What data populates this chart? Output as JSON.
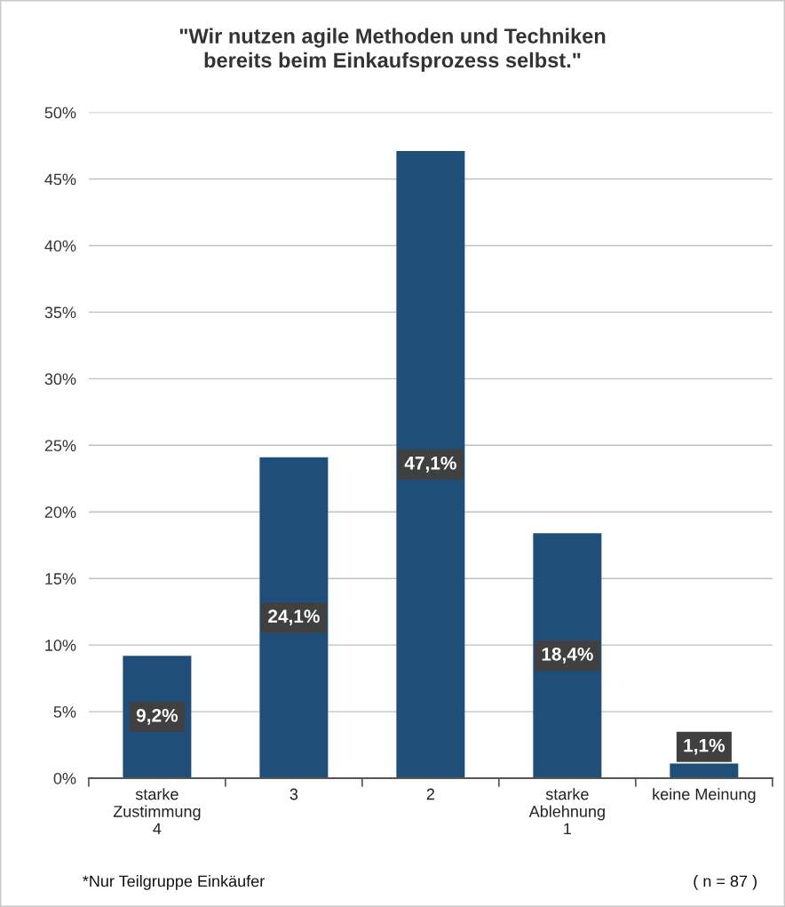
{
  "chart_data": {
    "type": "bar",
    "title": "\"Wir nutzen agile Methoden und Techniken\nbereits beim Einkaufsprozess selbst.\"",
    "categories": [
      "starke\nZustimmung\n4",
      "3",
      "2",
      "starke\nAblehnung\n1",
      "keine Meinung"
    ],
    "values": [
      9.2,
      24.1,
      47.1,
      18.4,
      1.1
    ],
    "value_labels": [
      "9,2%",
      "24,1%",
      "47,1%",
      "18,4%",
      "1,1%"
    ],
    "color": "#1f4e79",
    "ylim": [
      0,
      50
    ],
    "yticks": [
      {
        "value": 0,
        "label": "0%"
      },
      {
        "value": 5,
        "label": "5%"
      },
      {
        "value": 10,
        "label": "10%"
      },
      {
        "value": 15,
        "label": "15%"
      },
      {
        "value": 20,
        "label": "20%"
      },
      {
        "value": 25,
        "label": "25%"
      },
      {
        "value": 30,
        "label": "30%"
      },
      {
        "value": 35,
        "label": "35%"
      },
      {
        "value": 40,
        "label": "40%"
      },
      {
        "value": 45,
        "label": "45%"
      },
      {
        "value": 50,
        "label": "50%"
      }
    ],
    "grid": "y",
    "annotations": [
      "*Nur Teilgruppe Einkäufer",
      "( n = 87 )"
    ]
  }
}
